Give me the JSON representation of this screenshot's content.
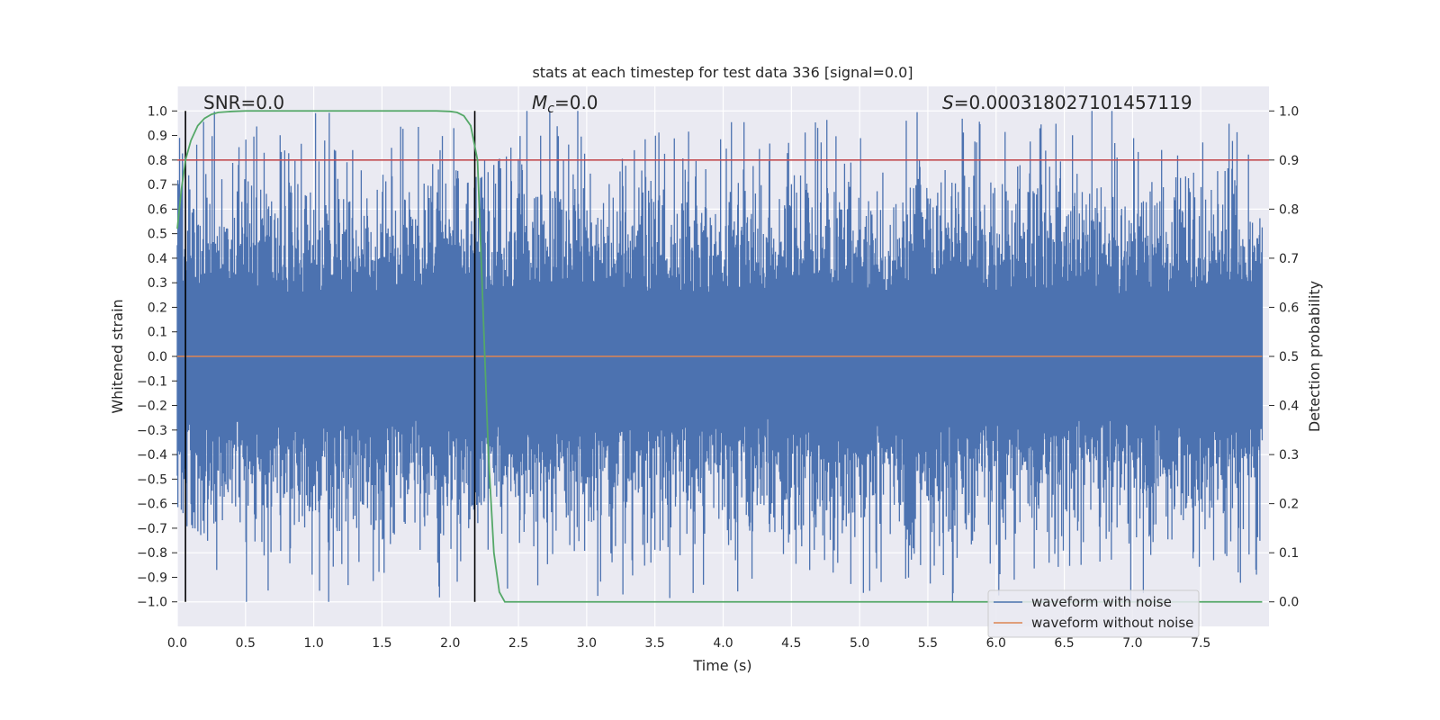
{
  "chart_data": {
    "type": "line",
    "title": "stats at each timestep for test data 336 [signal=0.0]",
    "xlabel": "Time (s)",
    "ylabel": "Whitened strain",
    "ylabel_right": "Detection probability",
    "xlim": [
      0.0,
      8.0
    ],
    "ylim": [
      -1.1,
      1.1
    ],
    "ylim_right": [
      -0.05,
      1.05
    ],
    "x_ticks": [
      "0.0",
      "0.5",
      "1.0",
      "1.5",
      "2.0",
      "2.5",
      "3.0",
      "3.5",
      "4.0",
      "4.5",
      "5.0",
      "5.5",
      "6.0",
      "6.5",
      "7.0",
      "7.5"
    ],
    "y_ticks": [
      "1.0",
      "0.9",
      "0.8",
      "0.7",
      "0.6",
      "0.5",
      "0.4",
      "0.3",
      "0.2",
      "0.1",
      "0.0",
      "−0.1",
      "−0.2",
      "−0.3",
      "−0.4",
      "−0.5",
      "−0.6",
      "−0.7",
      "−0.8",
      "−0.9",
      "−1.0"
    ],
    "y_ticks_right": [
      "1.0",
      "0.9",
      "0.8",
      "0.7",
      "0.6",
      "0.5",
      "0.4",
      "0.3",
      "0.2",
      "0.1",
      "0.0"
    ],
    "annotations": {
      "snr": "SNR=0.0",
      "mc_symbol": "M",
      "mc_sub": "c",
      "mc_value": "=0.0",
      "s_symbol": "S",
      "s_value": "=0.000318027101457119"
    },
    "vertical_lines_x": [
      0.06,
      2.18
    ],
    "threshold_line_probability": 0.9,
    "series": [
      {
        "name": "waveform with noise",
        "color": "#4c72b0",
        "kind": "noise",
        "amplitude_typical": 0.45,
        "amplitude_max": 1.0
      },
      {
        "name": "waveform without noise",
        "color": "#dd8452",
        "x": [
          0.0,
          7.95
        ],
        "y": [
          0.0,
          0.0
        ]
      },
      {
        "name": "detection probability",
        "color": "#55a868",
        "axis": "right",
        "x": [
          0.0,
          0.03,
          0.06,
          0.1,
          0.15,
          0.2,
          0.25,
          0.3,
          0.4,
          0.5,
          1.0,
          1.5,
          1.9,
          2.0,
          2.05,
          2.1,
          2.15,
          2.2,
          2.24,
          2.28,
          2.32,
          2.36,
          2.4,
          2.5,
          3.0,
          4.0,
          5.0,
          6.0,
          7.0,
          7.95
        ],
        "y": [
          0.76,
          0.84,
          0.9,
          0.94,
          0.97,
          0.985,
          0.993,
          0.997,
          0.999,
          1.0,
          1.0,
          1.0,
          1.0,
          0.999,
          0.997,
          0.99,
          0.97,
          0.9,
          0.6,
          0.3,
          0.1,
          0.02,
          0.0,
          0.0,
          0.0,
          0.0,
          0.0,
          0.0,
          0.0,
          0.0
        ]
      }
    ],
    "grid": true,
    "legend_position": "bottom-right",
    "legend": [
      "waveform with noise",
      "waveform without noise"
    ],
    "colors": {
      "background": "#eaeaf2",
      "grid": "#ffffff",
      "noise": "#4c72b0",
      "clean": "#dd8452",
      "prob": "#55a868",
      "threshold": "#c44e52",
      "vline": "#000000"
    }
  }
}
